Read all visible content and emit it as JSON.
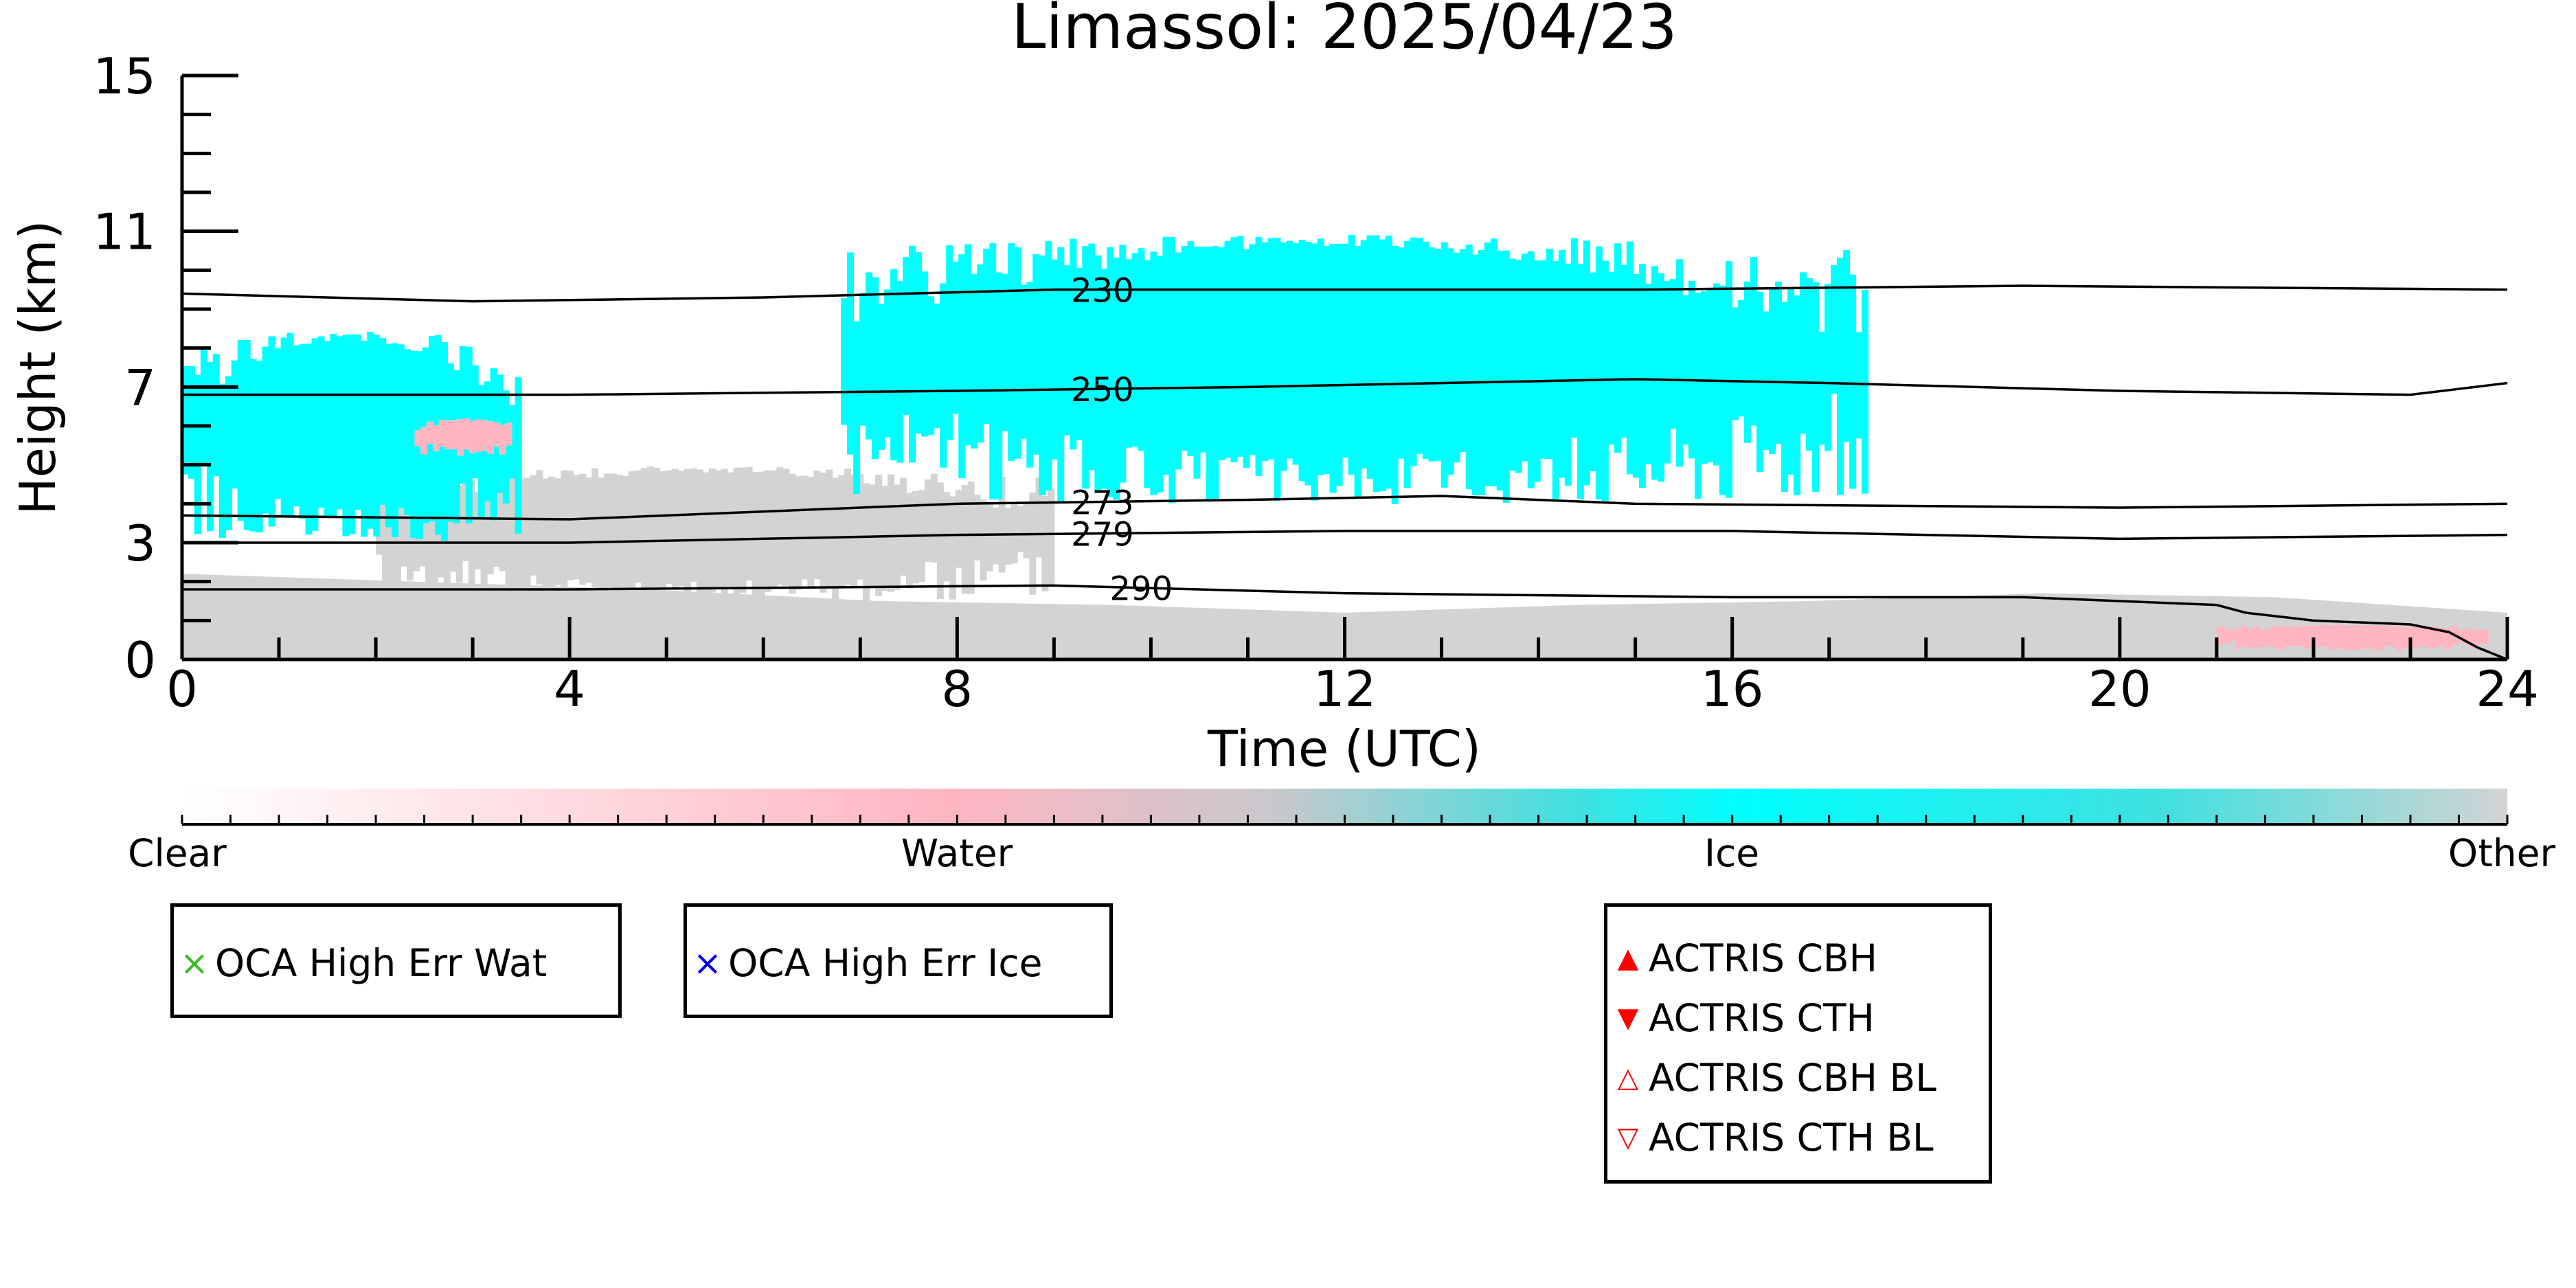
{
  "chart_data": {
    "type": "heatmap",
    "title": "Limassol: 2025/04/23",
    "xlabel": "Time (UTC)",
    "ylabel": "Height (km)",
    "xlim": [
      0,
      24
    ],
    "ylim": [
      0,
      15
    ],
    "x_ticks": [
      0,
      4,
      8,
      12,
      16,
      20,
      24
    ],
    "y_ticks": [
      0,
      3,
      7,
      11,
      15
    ],
    "categories": [
      "Clear",
      "Water",
      "Ice",
      "Other"
    ],
    "colors": {
      "clear": "#ffffff",
      "water": "#ffb6c1",
      "ice": "#00ffff",
      "other": "#d3d3d3"
    },
    "regions": [
      {
        "type": "Other",
        "x": [
          0,
          24
        ],
        "y_top": [
          2.2,
          2.0,
          1.8,
          1.5,
          1.4,
          1.2,
          1.4,
          1.5,
          1.7,
          1.6,
          1.2
        ]
      },
      {
        "type": "Other",
        "x": [
          2.0,
          9.0
        ],
        "y": [
          1.3,
          5.0
        ]
      },
      {
        "type": "Ice",
        "x": [
          0,
          3.5
        ],
        "y": [
          2.8,
          8.5
        ]
      },
      {
        "type": "Ice",
        "x": [
          6.8,
          17.4
        ],
        "y": [
          3.8,
          11.0
        ]
      },
      {
        "type": "Water",
        "x": [
          2.4,
          3.4
        ],
        "y": [
          5.2,
          6.2
        ]
      },
      {
        "type": "Water",
        "x": [
          21.0,
          23.8
        ],
        "y": [
          0.2,
          0.9
        ]
      }
    ],
    "isotherms": [
      {
        "label": "230",
        "x": [
          0,
          3,
          6,
          9,
          12,
          15,
          19,
          24
        ],
        "y": [
          9.4,
          9.2,
          9.3,
          9.5,
          9.5,
          9.5,
          9.6,
          9.5
        ]
      },
      {
        "label": "250",
        "x": [
          0,
          4,
          8,
          11,
          13,
          15,
          17,
          20,
          23,
          24
        ],
        "y": [
          6.8,
          6.8,
          6.9,
          7.0,
          7.1,
          7.2,
          7.1,
          6.9,
          6.8,
          7.1
        ]
      },
      {
        "label": "273",
        "x": [
          0,
          4,
          8,
          11,
          13,
          15,
          20,
          24
        ],
        "y": [
          3.7,
          3.6,
          4.0,
          4.1,
          4.2,
          4.0,
          3.9,
          4.0
        ]
      },
      {
        "label": "279",
        "x": [
          0,
          4,
          8,
          12,
          16,
          20,
          24
        ],
        "y": [
          3.0,
          3.0,
          3.2,
          3.3,
          3.3,
          3.1,
          3.2
        ]
      },
      {
        "label": "290",
        "x": [
          0,
          4,
          9,
          12,
          16,
          19,
          21,
          21.3,
          22,
          23,
          23.4,
          23.7,
          24
        ],
        "y": [
          1.8,
          1.8,
          1.9,
          1.7,
          1.6,
          1.6,
          1.4,
          1.2,
          1.0,
          0.9,
          0.7,
          0.3,
          0.0
        ]
      }
    ],
    "colorbar": {
      "labels": [
        "Clear",
        "Water",
        "Ice",
        "Other"
      ]
    }
  },
  "legends": [
    {
      "items": [
        {
          "marker": "×",
          "color": "#3dbb2a",
          "label": "OCA High Err Wat"
        }
      ]
    },
    {
      "items": [
        {
          "marker": "×",
          "color": "#0000ee",
          "label": "OCA High Err Ice"
        }
      ]
    },
    {
      "items": [
        {
          "marker": "▲",
          "color": "#ff0000",
          "label": "ACTRIS CBH"
        },
        {
          "marker": "▼",
          "color": "#ff0000",
          "label": "ACTRIS CTH"
        },
        {
          "marker": "△",
          "color": "#ff0000",
          "label": "ACTRIS CBH BL"
        },
        {
          "marker": "▽",
          "color": "#ff0000",
          "label": "ACTRIS CTH BL"
        }
      ]
    }
  ]
}
